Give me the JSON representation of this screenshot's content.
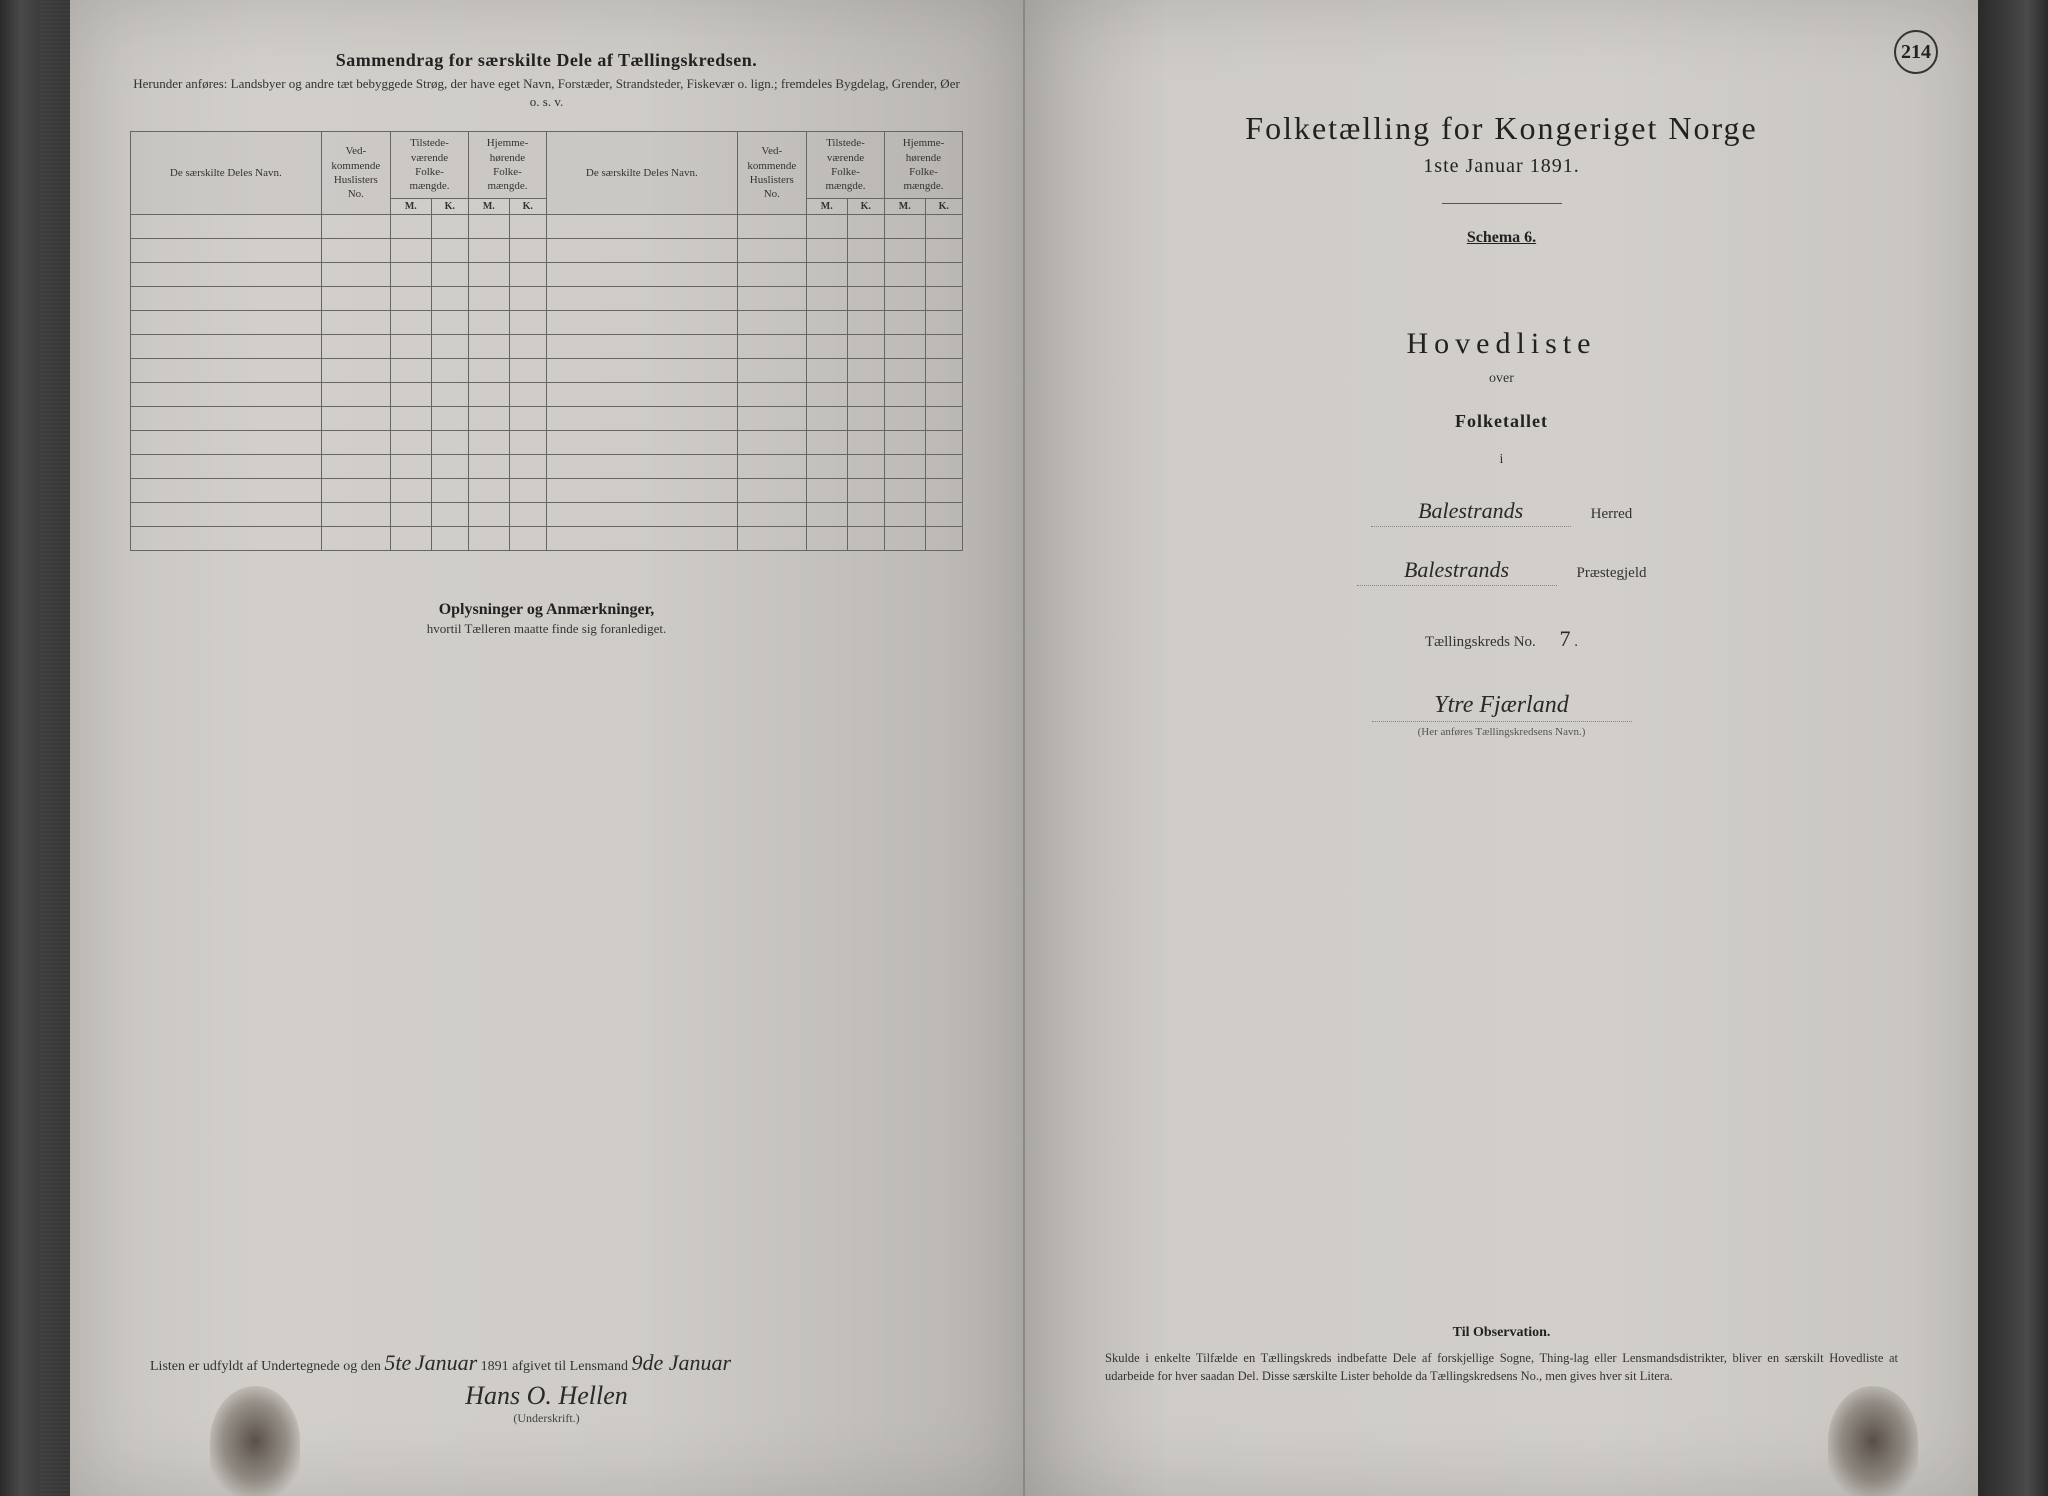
{
  "page_number_right": "214",
  "left_page": {
    "title": "Sammendrag for særskilte Dele af Tællingskredsen.",
    "subtitle": "Herunder anføres: Landsbyer og andre tæt bebyggede Strøg, der have eget Navn, Forstæder, Strandsteder, Fiskevær o. lign.; fremdeles Bygdelag, Grender, Øer o. s. v.",
    "table_headers": {
      "name": "De særskilte Deles Navn.",
      "husliste": "Ved-\nkommende\nHuslisters\nNo.",
      "tilstede": "Tilstede-\nværende\nFolke-\nmængde.",
      "hjemme": "Hjemme-\nhørende\nFolke-\nmængde.",
      "m": "M.",
      "k": "K."
    },
    "empty_rows": 14,
    "notes_title": "Oplysninger og Anmærkninger,",
    "notes_subtitle": "hvortil Tælleren maatte finde sig foranlediget.",
    "signature_prefix": "Listen er udfyldt af Undertegnede og den",
    "signature_date_day": "5te",
    "signature_date_month": "Januar",
    "signature_date_year": "1891 afgivet til Lensmand",
    "signature_date_delivered": "9de Januar",
    "signature_name": "Hans O. Hellen",
    "signature_label": "(Underskrift.)"
  },
  "right_page": {
    "title": "Folketælling for Kongeriget Norge",
    "date": "1ste Januar 1891.",
    "schema": "Schema 6.",
    "hovedliste": "Hovedliste",
    "over": "over",
    "folketallet": "Folketallet",
    "i": "i",
    "herred_value": "Balestrands",
    "herred_label": "Herred",
    "prestegjeld_value": "Balestrands",
    "prestegjeld_label": "Præstegjeld",
    "kreds_label": "Tællingskreds No.",
    "kreds_no": "7",
    "kreds_name": "Ytre Fjærland",
    "kreds_hint": "(Her anføres Tællingskredsens Navn.)",
    "observation_title": "Til Observation.",
    "observation_text": "Skulde i enkelte Tilfælde en Tællingskreds indbefatte Dele af forskjellige Sogne, Thing-lag eller Lensmandsdistrikter, bliver en særskilt Hovedliste at udarbeide for hver saadan Del. Disse særskilte Lister beholde da Tællingskredsens No., men gives hver sit Litera."
  },
  "colors": {
    "page_bg": "#cfccc7",
    "ink": "#222222",
    "border": "#666666",
    "handwriting": "#2a2a2a"
  }
}
